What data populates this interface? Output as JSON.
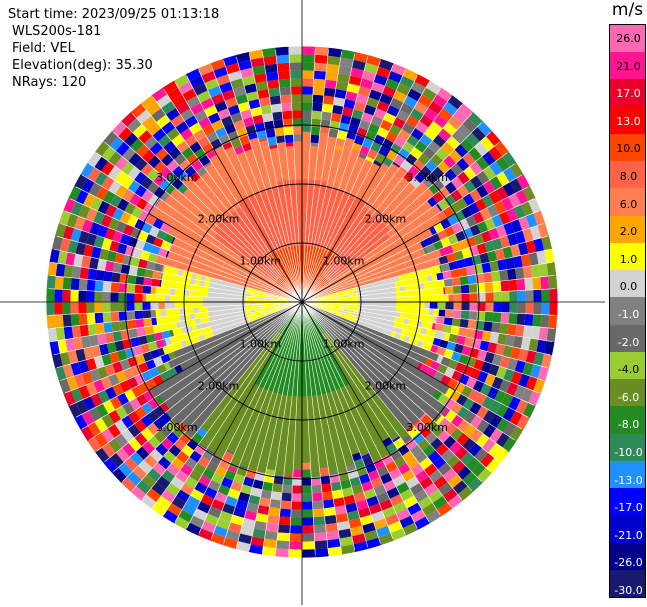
{
  "header": {
    "start_time": "Start time: 2023/09/25 01:13:18",
    "instrument": "WLS200s-181",
    "field": "Field: VEL",
    "elevation": "Elevation(deg): 35.30",
    "nrays": "NRays: 120"
  },
  "colorbar": {
    "title": "m/s",
    "ticks": [
      "26.0",
      "21.0",
      "17.0",
      "13.0",
      "10.0",
      "8.0",
      "6.0",
      "2.0",
      "1.0",
      "0.0",
      "-1.0",
      "-2.0",
      "-4.0",
      "-6.0",
      "-8.0",
      "-10.0",
      "-13.0",
      "-17.0",
      "-21.0",
      "-26.0",
      "-30.0"
    ],
    "colors": [
      "#ff69b4",
      "#ff1493",
      "#e8002a",
      "#ff0000",
      "#ff4500",
      "#ff6347",
      "#ff7f50",
      "#ffa500",
      "#ffff00",
      "#d3d3d3",
      "#808080",
      "#696969",
      "#9acd32",
      "#6b8e23",
      "#228b22",
      "#2e8b57",
      "#1e90ff",
      "#0000ff",
      "#0000cd",
      "#00008b",
      "#191970"
    ]
  },
  "chart_data": {
    "type": "heatmap",
    "projection": "polar (PPI)",
    "field": "VEL",
    "units": "m/s",
    "n_rays": 120,
    "range_rings_km": [
      1.0,
      2.0,
      3.0
    ],
    "ring_labels": [
      "1.00km",
      "2.00km",
      "3.00km"
    ],
    "center_velocity_bands": [
      {
        "sector": "north",
        "range_km": [
          0,
          1.0
        ],
        "velocity": 8
      },
      {
        "sector": "north",
        "range_km": [
          1.0,
          2.7
        ],
        "velocity": 6
      },
      {
        "sector": "north-east-west",
        "range_km": [
          0.3,
          2.2
        ],
        "velocity": 2
      },
      {
        "sector": "east-west",
        "range_km": [
          0,
          2.2
        ],
        "velocity": 0
      },
      {
        "sector": "south",
        "range_km": [
          0,
          1.6
        ],
        "velocity": -6
      },
      {
        "sector": "south-flanks",
        "range_km": [
          0.8,
          2.3
        ],
        "velocity": -2
      }
    ],
    "far_range_noise_km": [
      2.4,
      4.3
    ]
  }
}
